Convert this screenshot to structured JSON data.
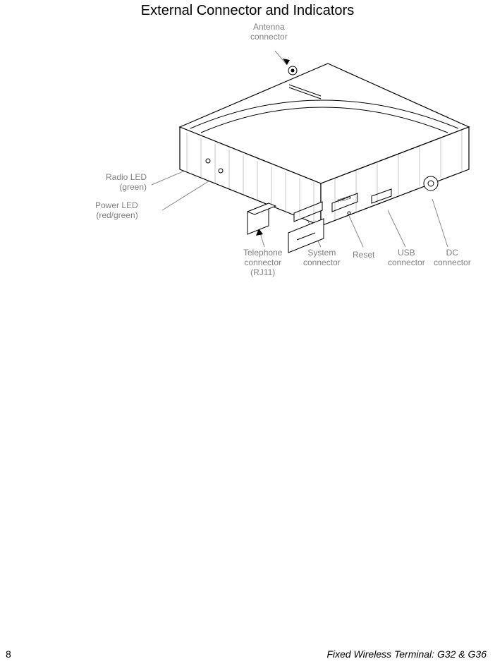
{
  "title": "External Connector and Indicators",
  "labels": {
    "antenna": "Antenna\nconnector",
    "radio_led": "Radio LED\n(green)",
    "power_led": "Power LED\n(red/green)",
    "telephone": "Telephone\nconnector\n(RJ11)",
    "system": "System\nconnector",
    "reset": "Reset",
    "usb": "USB\nconnector",
    "dc": "DC\nconnector"
  },
  "footer": {
    "page": "8",
    "book": "Fixed Wireless Terminal: G32 & G36"
  },
  "style": {
    "label_color": "#808080",
    "stroke": "#000000",
    "light_stroke": "#888888",
    "bg": "#ffffff"
  }
}
